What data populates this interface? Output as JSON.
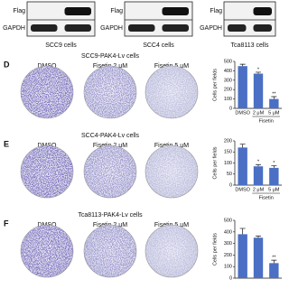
{
  "blots": [
    {
      "rows": [
        "Flag",
        "GAPDH"
      ],
      "caption": "SCC9 cells"
    },
    {
      "rows": [
        "Flag",
        "GAPDH"
      ],
      "caption": "SCC4 cells"
    },
    {
      "rows": [
        "Flag",
        "GAPDH"
      ],
      "caption": "Tca8113 cells"
    }
  ],
  "panels": [
    {
      "letter": "D",
      "title": "SCC9-PAK4-Lv cells",
      "plates": [
        "DMSO",
        "Fisetin 2 μM",
        "Fisetin 5 μM"
      ]
    },
    {
      "letter": "E",
      "title": "SCC4-PAK4-Lv  cells",
      "plates": [
        "DMSO",
        "Fisetin 2 μM",
        "Fisetin 5 μM"
      ]
    },
    {
      "letter": "F",
      "title": "Tca8113-PAK4-Lv  cells",
      "plates": [
        "DMSO",
        "Fisetin 2 μM",
        "Fisetin 5 μM"
      ]
    }
  ],
  "chart_data": [
    {
      "type": "bar",
      "ylabel": "Cells per fields",
      "categories": [
        "DMSO",
        "2 μM",
        "5 μM"
      ],
      "group_label": "Fisetin",
      "values": [
        450,
        370,
        100
      ],
      "errors": [
        20,
        15,
        25
      ],
      "star_labels": [
        null,
        "*",
        "**"
      ],
      "color": "#4a6fc4",
      "ylim": [
        0,
        500
      ],
      "yticks": [
        0,
        100,
        200,
        300,
        400,
        500
      ]
    },
    {
      "type": "bar",
      "ylabel": "Cells per fields",
      "categories": [
        "DMSO",
        "2 μM",
        "5 μM"
      ],
      "group_label": "Fisetin",
      "values": [
        170,
        85,
        78
      ],
      "errors": [
        15,
        8,
        10
      ],
      "star_labels": [
        null,
        "*",
        "*"
      ],
      "color": "#4a6fc4",
      "ylim": [
        0,
        200
      ],
      "yticks": [
        0,
        50,
        100,
        150,
        200
      ]
    },
    {
      "type": "bar",
      "ylabel": "Cells per fields",
      "values": [
        380,
        350,
        130
      ],
      "errors": [
        50,
        15,
        25
      ],
      "star_labels": [
        null,
        null,
        "**"
      ],
      "color": "#4a6fc4",
      "ylim": [
        0,
        500
      ],
      "yticks": [
        0,
        100,
        200,
        300,
        400,
        500
      ]
    }
  ]
}
